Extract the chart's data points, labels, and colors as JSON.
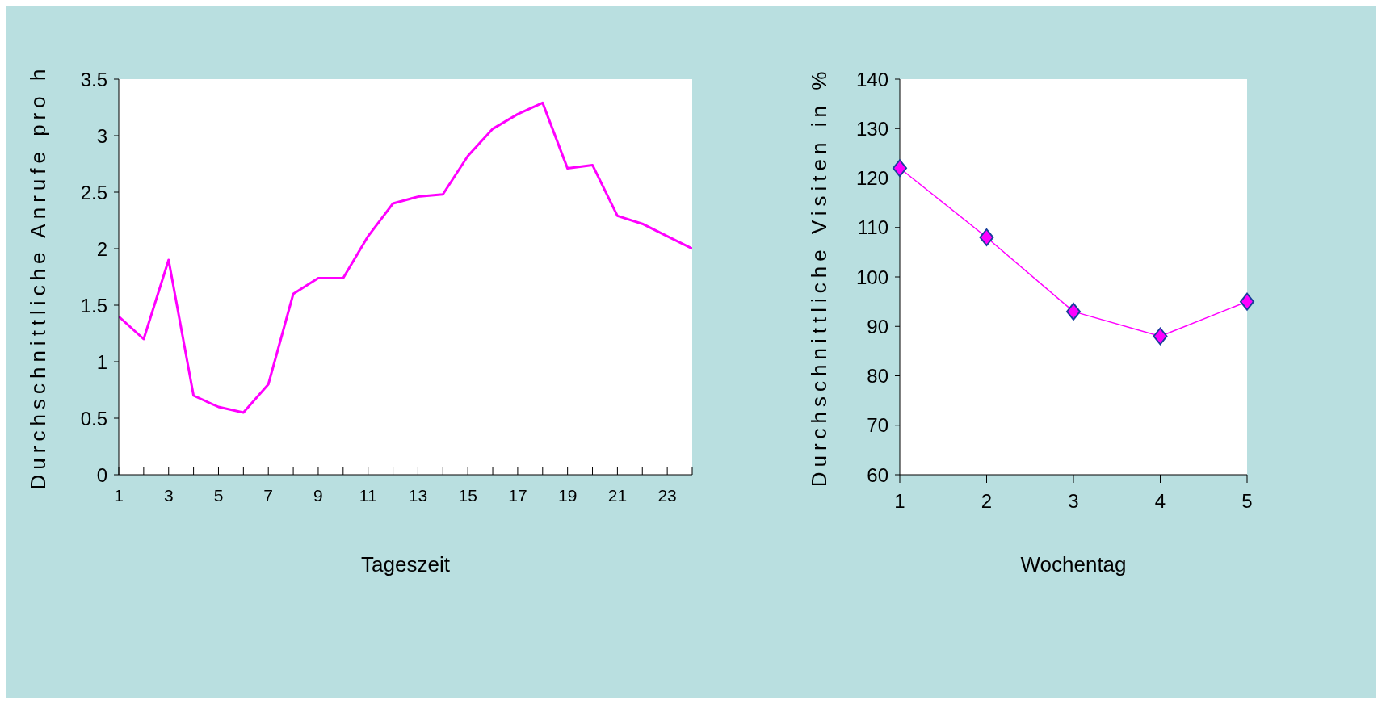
{
  "chart_data": [
    {
      "type": "line",
      "ylabel": "Durchschnittliche Anrufe pro h",
      "xlabel": "Tageszeit",
      "x": [
        1,
        2,
        3,
        4,
        5,
        6,
        7,
        8,
        9,
        10,
        11,
        12,
        13,
        14,
        15,
        16,
        17,
        18,
        19,
        20,
        21,
        22,
        23,
        24
      ],
      "xlim": [
        1,
        24
      ],
      "xticks": [
        1,
        {
          "value": 2,
          "label": null
        },
        3,
        {
          "value": 4,
          "label": null
        },
        5,
        {
          "value": 6,
          "label": null
        },
        7,
        {
          "value": 8,
          "label": null
        },
        9,
        {
          "value": 10,
          "label": null
        },
        11,
        {
          "value": 12,
          "label": null
        },
        13,
        {
          "value": 14,
          "label": null
        },
        15,
        {
          "value": 16,
          "label": null
        },
        17,
        {
          "value": 18,
          "label": null
        },
        19,
        {
          "value": 20,
          "label": null
        },
        21,
        {
          "value": 22,
          "label": null
        },
        23,
        {
          "value": 24,
          "label": null
        }
      ],
      "series": [
        {
          "color": "#ff00ff",
          "values": [
            1.4,
            1.2,
            1.9,
            0.7,
            0.6,
            0.55,
            0.8,
            1.6,
            1.74,
            1.74,
            2.11,
            2.4,
            2.46,
            2.48,
            2.82,
            3.06,
            3.19,
            3.29,
            2.71,
            2.74,
            2.29,
            2.22,
            2.11,
            2.0
          ]
        }
      ],
      "ylim": [
        0,
        3.5
      ],
      "yticks": [
        0,
        0.5,
        1,
        1.5,
        2,
        2.5,
        3,
        3.5
      ],
      "grid": false,
      "marker": "none",
      "line_style": "solid"
    },
    {
      "type": "line",
      "ylabel": "Durchschnittliche Visiten in %",
      "xlabel": "Wochentag",
      "categories": [
        "1",
        "2",
        "3",
        "4",
        "5"
      ],
      "series": [
        {
          "color": "#ff00ff",
          "values": [
            122,
            108,
            93,
            88,
            95
          ]
        }
      ],
      "ylim": [
        60,
        140
      ],
      "yticks": [
        60,
        70,
        80,
        90,
        100,
        110,
        120,
        130,
        140
      ],
      "grid": false,
      "marker": "diamond",
      "line_style": "solid"
    }
  ]
}
